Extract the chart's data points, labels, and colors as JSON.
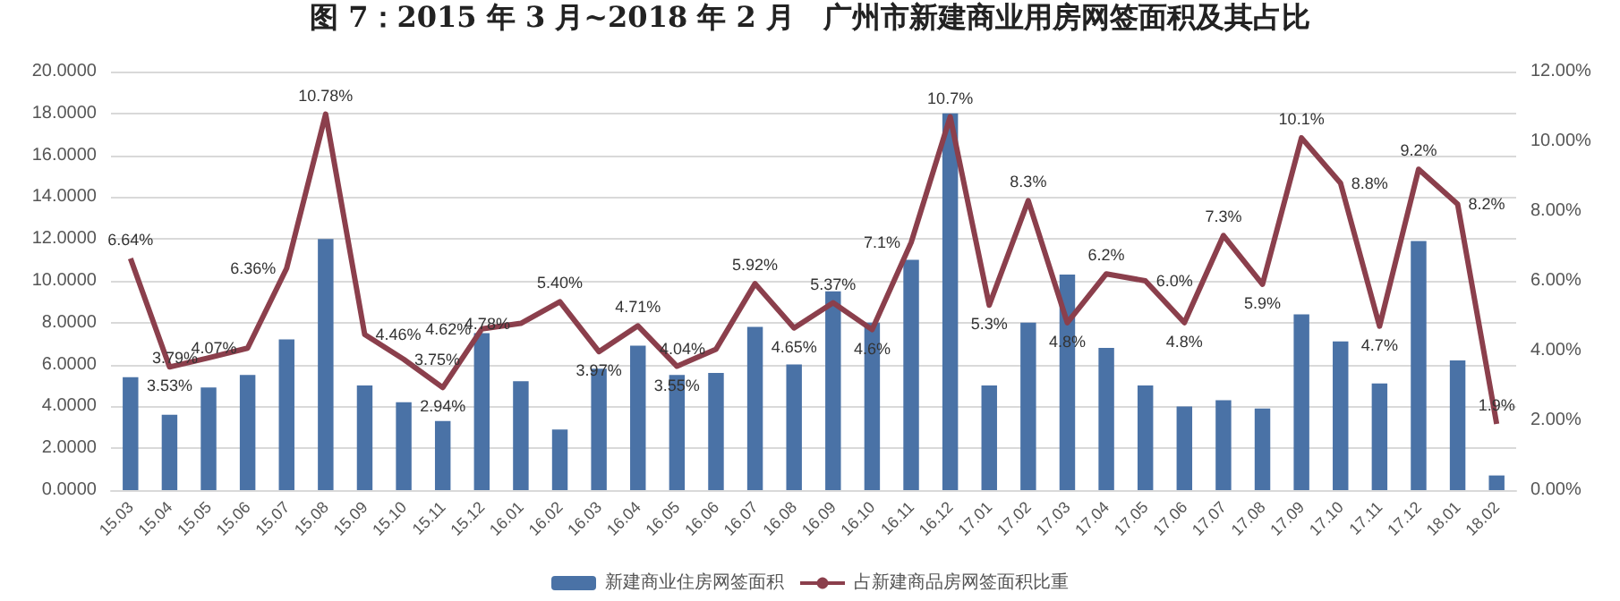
{
  "chart_data": {
    "type": "bar",
    "title": "图 7：2015 年 3 月~2018 年 2 月　广州市新建商业用房网签面积及其占比",
    "categories": [
      "15.03",
      "15.04",
      "15.05",
      "15.06",
      "15.07",
      "15.08",
      "15.09",
      "15.10",
      "15.11",
      "15.12",
      "16.01",
      "16.02",
      "16.03",
      "16.04",
      "16.05",
      "16.06",
      "16.07",
      "16.08",
      "16.09",
      "16.10",
      "16.11",
      "16.12",
      "17.01",
      "17.02",
      "17.03",
      "17.04",
      "17.05",
      "17.06",
      "17.07",
      "17.08",
      "17.09",
      "17.10",
      "17.11",
      "17.12",
      "18.01",
      "18.02"
    ],
    "series": [
      {
        "name": "新建商业住房网签面积",
        "color": "#4a72a6",
        "values": [
          5.4,
          3.6,
          4.9,
          5.5,
          7.2,
          12.0,
          5.0,
          4.2,
          3.3,
          7.5,
          5.2,
          2.9,
          5.8,
          6.9,
          5.5,
          5.6,
          7.8,
          6.0,
          9.5,
          8.0,
          11.0,
          18.0,
          5.0,
          8.0,
          10.3,
          6.8,
          5.0,
          4.0,
          4.3,
          3.9,
          8.4,
          7.1,
          5.1,
          11.9,
          6.2,
          0.7
        ]
      },
      {
        "name": "占新建商品房网签面积比重",
        "type": "line",
        "axis": "y2",
        "color": "#8b3f4c",
        "values": [
          6.64,
          3.53,
          3.79,
          4.07,
          6.36,
          10.78,
          4.46,
          3.75,
          2.94,
          4.62,
          4.78,
          5.4,
          3.97,
          4.71,
          3.55,
          4.04,
          5.92,
          4.65,
          5.37,
          4.6,
          7.1,
          10.7,
          5.3,
          8.3,
          4.8,
          6.2,
          6.0,
          4.8,
          7.3,
          5.9,
          10.1,
          8.8,
          4.7,
          9.2,
          8.2,
          1.9
        ],
        "value_labels": [
          "6.64%",
          "3.53%",
          "3.79%",
          "4.07%",
          "6.36%",
          "10.78%",
          "4.46%",
          "3.75%",
          "2.94%",
          "4.62%",
          "4.78%",
          "5.40%",
          "3.97%",
          "4.71%",
          "3.55%",
          "4.04%",
          "5.92%",
          "4.65%",
          "5.37%",
          "4.6%",
          "7.1%",
          "10.7%",
          "5.3%",
          "8.3%",
          "4.8%",
          "6.2%",
          "6.0%",
          "4.8%",
          "7.3%",
          "5.9%",
          "10.1%",
          "8.8%",
          "4.7%",
          "9.2%",
          "8.2%",
          "1.9%"
        ]
      }
    ],
    "ylim": [
      0,
      20
    ],
    "yticks": [
      {
        "value": 0,
        "label": "0.0000"
      },
      {
        "value": 2,
        "label": "2.0000"
      },
      {
        "value": 4,
        "label": "4.0000"
      },
      {
        "value": 6,
        "label": "6.0000"
      },
      {
        "value": 8,
        "label": "8.0000"
      },
      {
        "value": 10,
        "label": "10.0000"
      },
      {
        "value": 12,
        "label": "12.0000"
      },
      {
        "value": 14,
        "label": "14.0000"
      },
      {
        "value": 16,
        "label": "16.0000"
      },
      {
        "value": 18,
        "label": "18.0000"
      },
      {
        "value": 20,
        "label": "20.0000"
      }
    ],
    "y2lim": [
      0,
      12
    ],
    "y2ticks": [
      {
        "value": 0,
        "label": "0.00%"
      },
      {
        "value": 2,
        "label": "2.00%"
      },
      {
        "value": 4,
        "label": "4.00%"
      },
      {
        "value": 6,
        "label": "6.00%"
      },
      {
        "value": 8,
        "label": "8.00%"
      },
      {
        "value": 10,
        "label": "10.00%"
      },
      {
        "value": 12,
        "label": "12.00%"
      }
    ],
    "grid": "y",
    "legend": "bottom",
    "marker": "none",
    "line_style": "solid"
  }
}
